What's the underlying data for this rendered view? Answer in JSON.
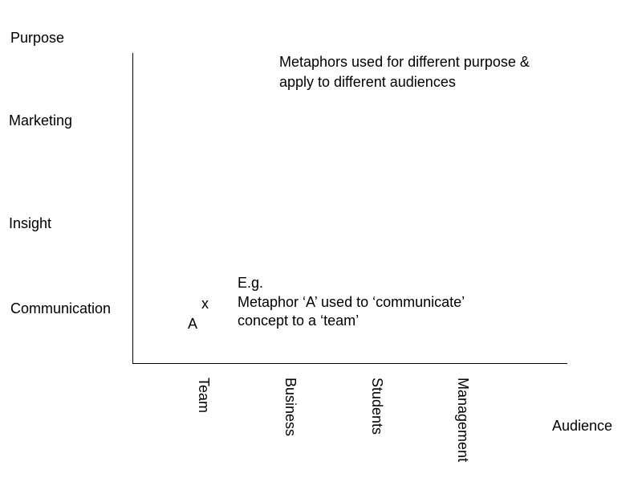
{
  "y_axis": {
    "title": "Purpose",
    "labels": [
      "Marketing",
      "Insight",
      "Communication"
    ]
  },
  "x_axis": {
    "title": "Audience",
    "labels": [
      "Team",
      "Business",
      "Students",
      "Management"
    ]
  },
  "heading": {
    "line1": "Metaphors used for different purpose &",
    "line2": "apply to different audiences"
  },
  "example": {
    "line1": "E.g.",
    "line2": "Metaphor ‘A’ used to ‘communicate’",
    "line3": "concept to a ‘team’"
  },
  "marker": {
    "symbol": "x",
    "label": "A"
  }
}
